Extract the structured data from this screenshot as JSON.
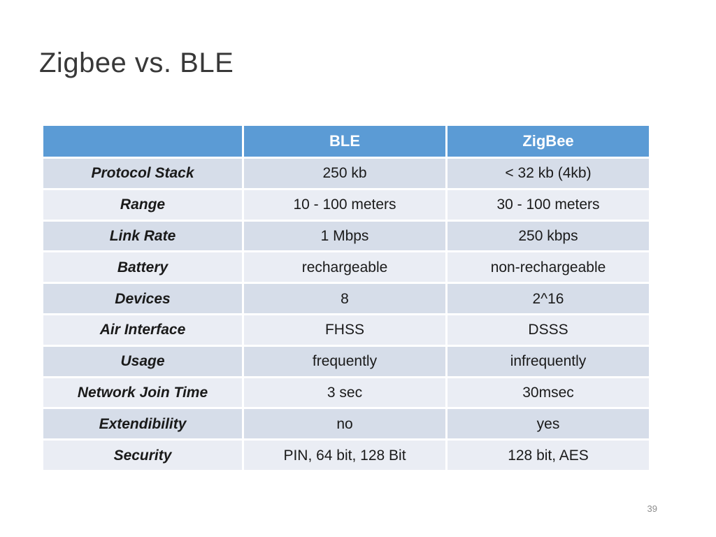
{
  "slide": {
    "title": "Zigbee vs. BLE",
    "page_number": "39"
  },
  "table": {
    "header": [
      "",
      "BLE",
      "ZigBee"
    ],
    "rows": [
      [
        "Protocol Stack",
        "250 kb",
        "< 32 kb (4kb)"
      ],
      [
        "Range",
        "10 - 100 meters",
        "30 - 100 meters"
      ],
      [
        "Link Rate",
        "1 Mbps",
        "250 kbps"
      ],
      [
        "Battery",
        "rechargeable",
        "non-rechargeable"
      ],
      [
        "Devices",
        "8",
        "2^16"
      ],
      [
        "Air Interface",
        "FHSS",
        "DSSS"
      ],
      [
        "Usage",
        "frequently",
        "infrequently"
      ],
      [
        "Network Join Time",
        "3 sec",
        "30msec"
      ],
      [
        "Extendibility",
        "no",
        "yes"
      ],
      [
        "Security",
        "PIN, 64 bit, 128 Bit",
        "128 bit, AES"
      ]
    ]
  },
  "colors": {
    "header_bg": "#5b9bd5",
    "header_text": "#ffffff",
    "row_dark_bg": "#d6dde9",
    "row_light_bg": "#eaedf4",
    "body_text": "#1a1a1a",
    "title_text": "#383838",
    "page_number_text": "#8c8c8c"
  }
}
